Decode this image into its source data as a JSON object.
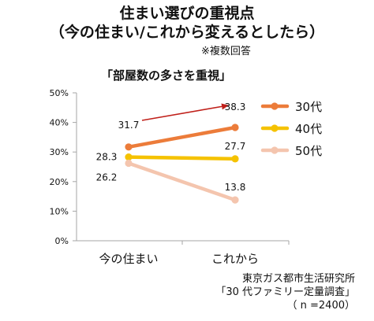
{
  "title": {
    "line1": "住まい選びの重視点",
    "line2": "（今の住まい/これから変えるとしたら）",
    "note": "※複数回答",
    "subtitle": "「部屋数の多さを重視」"
  },
  "source": {
    "line1": "東京ガス都市生活研究所",
    "line2": "「30 代ファミリー定量調査」",
    "line3": "（ n =2400）"
  },
  "chart_data": {
    "type": "line",
    "categories": [
      "今の住まい",
      "これから"
    ],
    "ylim": [
      0,
      50
    ],
    "yticks": [
      "0%",
      "10%",
      "20%",
      "30%",
      "40%",
      "50%"
    ],
    "grid": false,
    "legend_position": "right",
    "series": [
      {
        "name": "30代",
        "values": [
          31.7,
          38.3
        ],
        "labels": [
          "31.7",
          "38.3"
        ],
        "color": "#ec7c3a"
      },
      {
        "name": "40代",
        "values": [
          28.3,
          27.7
        ],
        "labels": [
          "28.3",
          "27.7"
        ],
        "color": "#f5c200"
      },
      {
        "name": "50代",
        "values": [
          26.2,
          13.8
        ],
        "labels": [
          "26.2",
          "13.8"
        ],
        "color": "#f4c5ae"
      }
    ],
    "annotations": [
      {
        "type": "arrow",
        "color": "#c0201a"
      }
    ]
  }
}
